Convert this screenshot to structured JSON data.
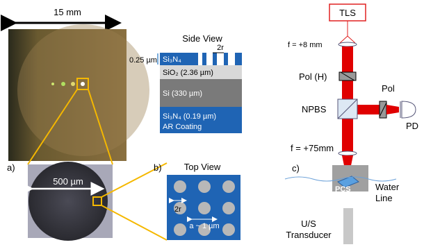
{
  "photo": {
    "scale": "15 mm",
    "panel": "a)",
    "zoom_scale": "500 µm"
  },
  "side_view": {
    "title": "Side View",
    "thickness": "0.25 µm",
    "top_layer": "Si₃N₄",
    "hole": "2r",
    "oxide": "SiO₂ (2.36 µm)",
    "substrate": "Si (330 µm)",
    "bottom_layer": "Si₃N₄ (0.19 µm)",
    "coating": "AR Coating"
  },
  "top_view": {
    "panel": "b)",
    "title": "Top View",
    "hole": "2r",
    "period": "a ~ 1 µm"
  },
  "setup": {
    "panel": "c)",
    "source": "TLS",
    "lens1": "f = +8 mm",
    "polarizer": "Pol (H)",
    "splitter": "NPBS",
    "pol2": "Pol",
    "detector": "PD",
    "lens2": "f = +75mm",
    "sample": "PCS",
    "water": "Water Line",
    "transducer": "U/S Transducer"
  }
}
